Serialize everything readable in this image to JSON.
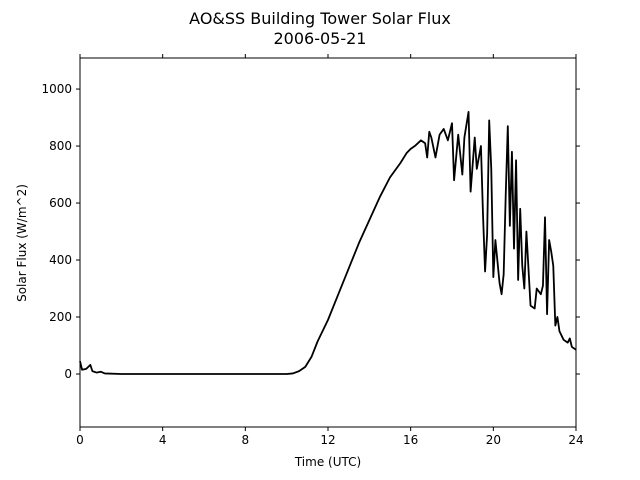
{
  "chart_data": {
    "type": "line",
    "title": "AO&SS Building Tower Solar Flux",
    "subtitle": "2006-05-21",
    "x_label": "Time (UTC)",
    "y_label": "Solar Flux (W/m^2)",
    "x": [
      0,
      0.1,
      0.3,
      0.5,
      0.6,
      0.8,
      1.0,
      1.2,
      2,
      4,
      6,
      8,
      10,
      10.3,
      10.6,
      10.9,
      11.2,
      11.5,
      12,
      12.5,
      13,
      13.5,
      14,
      14.5,
      15,
      15.5,
      15.8,
      16,
      16.2,
      16.5,
      16.7,
      16.8,
      16.9,
      17,
      17.2,
      17.4,
      17.6,
      17.8,
      18,
      18.1,
      18.3,
      18.5,
      18.6,
      18.8,
      18.9,
      19.1,
      19.2,
      19.4,
      19.5,
      19.6,
      19.7,
      19.8,
      19.9,
      20,
      20.1,
      20.3,
      20.4,
      20.5,
      20.6,
      20.7,
      20.8,
      20.9,
      21,
      21.1,
      21.2,
      21.3,
      21.4,
      21.5,
      21.6,
      21.8,
      22,
      22.1,
      22.3,
      22.4,
      22.5,
      22.6,
      22.7,
      22.8,
      22.9,
      23,
      23.1,
      23.2,
      23.4,
      23.6,
      23.7,
      23.8,
      24
    ],
    "series": [
      {
        "name": "Solar Flux",
        "color": "#000000",
        "values": [
          45,
          15,
          18,
          32,
          10,
          5,
          8,
          2,
          0,
          0,
          0,
          0,
          0,
          2,
          10,
          25,
          60,
          115,
          190,
          280,
          370,
          460,
          540,
          620,
          690,
          740,
          775,
          790,
          800,
          820,
          810,
          760,
          850,
          830,
          760,
          840,
          860,
          820,
          880,
          680,
          840,
          700,
          830,
          920,
          640,
          830,
          720,
          800,
          560,
          360,
          490,
          890,
          720,
          340,
          470,
          320,
          280,
          350,
          630,
          870,
          520,
          780,
          440,
          750,
          330,
          580,
          380,
          300,
          500,
          240,
          230,
          300,
          280,
          310,
          550,
          210,
          470,
          430,
          380,
          170,
          200,
          150,
          120,
          110,
          125,
          95,
          85
        ]
      }
    ],
    "xlim": [
      0,
      24
    ],
    "xticks": [
      0,
      4,
      8,
      12,
      16,
      20,
      24
    ],
    "ylim": [
      -186,
      1109
    ],
    "yticks": [
      0,
      200,
      400,
      600,
      800,
      1000
    ]
  }
}
